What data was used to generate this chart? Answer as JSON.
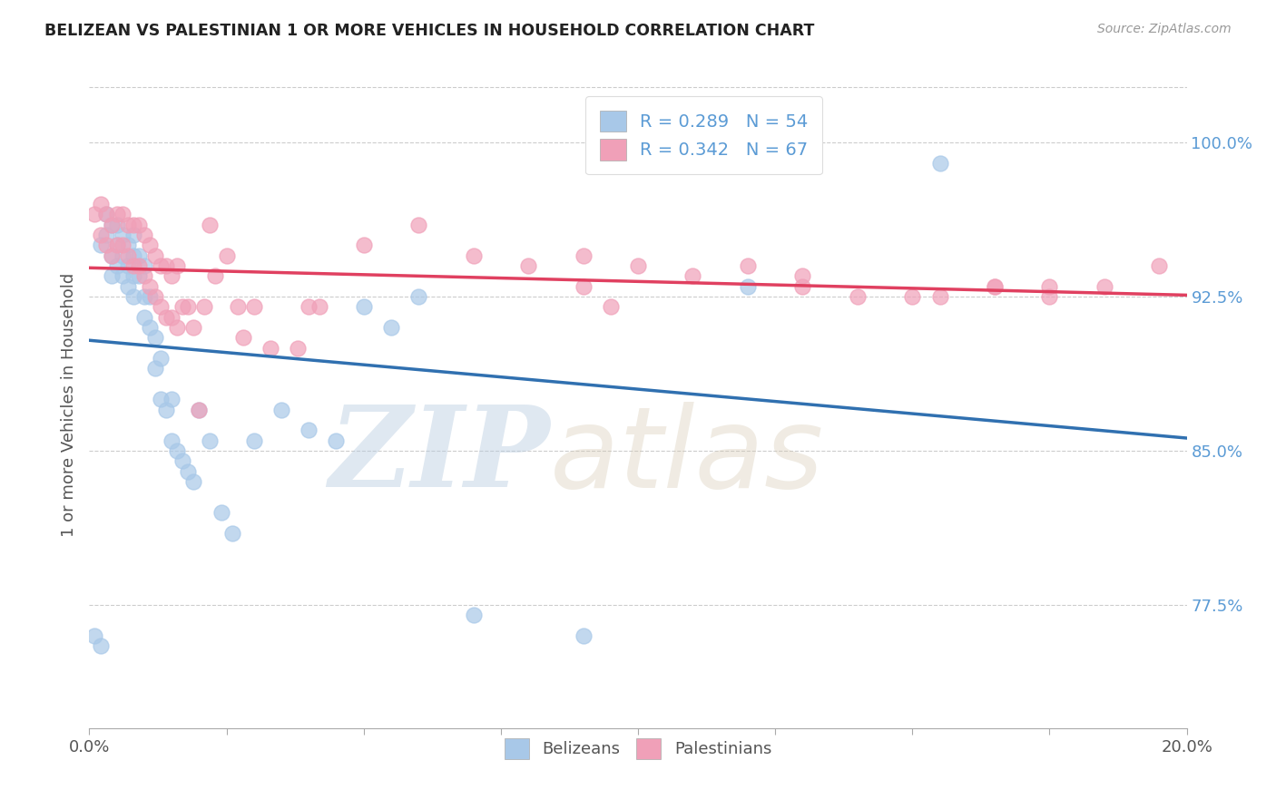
{
  "title": "BELIZEAN VS PALESTINIAN 1 OR MORE VEHICLES IN HOUSEHOLD CORRELATION CHART",
  "source": "Source: ZipAtlas.com",
  "ylabel": "1 or more Vehicles in Household",
  "xmin": 0.0,
  "xmax": 0.2,
  "ymin": 0.715,
  "ymax": 1.03,
  "yticks_right": [
    0.775,
    0.85,
    0.925,
    1.0
  ],
  "ytick_labels_right": [
    "77.5%",
    "85.0%",
    "92.5%",
    "100.0%"
  ],
  "legend_r_blue": "R = 0.289",
  "legend_n_blue": "N = 54",
  "legend_r_pink": "R = 0.342",
  "legend_n_pink": "N = 67",
  "legend_label_blue": "Belizeans",
  "legend_label_pink": "Palestinians",
  "color_blue": "#A8C8E8",
  "color_pink": "#F0A0B8",
  "line_color_blue": "#3070B0",
  "line_color_pink": "#E04060",
  "watermark_zip": "ZIP",
  "watermark_atlas": "atlas",
  "watermark_color": "#D0E4F4",
  "blue_x": [
    0.001,
    0.002,
    0.002,
    0.003,
    0.003,
    0.004,
    0.004,
    0.004,
    0.005,
    0.005,
    0.005,
    0.006,
    0.006,
    0.006,
    0.007,
    0.007,
    0.007,
    0.008,
    0.008,
    0.008,
    0.008,
    0.009,
    0.009,
    0.01,
    0.01,
    0.01,
    0.011,
    0.011,
    0.012,
    0.012,
    0.013,
    0.013,
    0.014,
    0.015,
    0.015,
    0.016,
    0.017,
    0.018,
    0.019,
    0.02,
    0.022,
    0.024,
    0.026,
    0.03,
    0.035,
    0.04,
    0.045,
    0.05,
    0.055,
    0.06,
    0.07,
    0.09,
    0.12,
    0.155
  ],
  "blue_y": [
    0.76,
    0.755,
    0.95,
    0.965,
    0.955,
    0.96,
    0.945,
    0.935,
    0.96,
    0.95,
    0.94,
    0.955,
    0.945,
    0.935,
    0.95,
    0.94,
    0.93,
    0.955,
    0.945,
    0.935,
    0.925,
    0.945,
    0.935,
    0.94,
    0.925,
    0.915,
    0.925,
    0.91,
    0.905,
    0.89,
    0.895,
    0.875,
    0.87,
    0.875,
    0.855,
    0.85,
    0.845,
    0.84,
    0.835,
    0.87,
    0.855,
    0.82,
    0.81,
    0.855,
    0.87,
    0.86,
    0.855,
    0.92,
    0.91,
    0.925,
    0.77,
    0.76,
    0.93,
    0.99
  ],
  "pink_x": [
    0.001,
    0.002,
    0.002,
    0.003,
    0.003,
    0.004,
    0.004,
    0.005,
    0.005,
    0.006,
    0.006,
    0.007,
    0.007,
    0.008,
    0.008,
    0.009,
    0.009,
    0.01,
    0.01,
    0.011,
    0.011,
    0.012,
    0.012,
    0.013,
    0.013,
    0.014,
    0.014,
    0.015,
    0.015,
    0.016,
    0.016,
    0.017,
    0.018,
    0.019,
    0.02,
    0.021,
    0.022,
    0.023,
    0.025,
    0.027,
    0.028,
    0.03,
    0.033,
    0.038,
    0.04,
    0.042,
    0.05,
    0.06,
    0.07,
    0.08,
    0.09,
    0.1,
    0.11,
    0.12,
    0.13,
    0.15,
    0.165,
    0.175,
    0.185,
    0.195,
    0.165,
    0.175,
    0.13,
    0.14,
    0.155,
    0.09,
    0.095
  ],
  "pink_y": [
    0.965,
    0.97,
    0.955,
    0.965,
    0.95,
    0.96,
    0.945,
    0.965,
    0.95,
    0.965,
    0.95,
    0.96,
    0.945,
    0.96,
    0.94,
    0.96,
    0.94,
    0.955,
    0.935,
    0.95,
    0.93,
    0.945,
    0.925,
    0.94,
    0.92,
    0.94,
    0.915,
    0.935,
    0.915,
    0.94,
    0.91,
    0.92,
    0.92,
    0.91,
    0.87,
    0.92,
    0.96,
    0.935,
    0.945,
    0.92,
    0.905,
    0.92,
    0.9,
    0.9,
    0.92,
    0.92,
    0.95,
    0.96,
    0.945,
    0.94,
    0.945,
    0.94,
    0.935,
    0.94,
    0.935,
    0.925,
    0.93,
    0.93,
    0.93,
    0.94,
    0.93,
    0.925,
    0.93,
    0.925,
    0.925,
    0.93,
    0.92
  ]
}
